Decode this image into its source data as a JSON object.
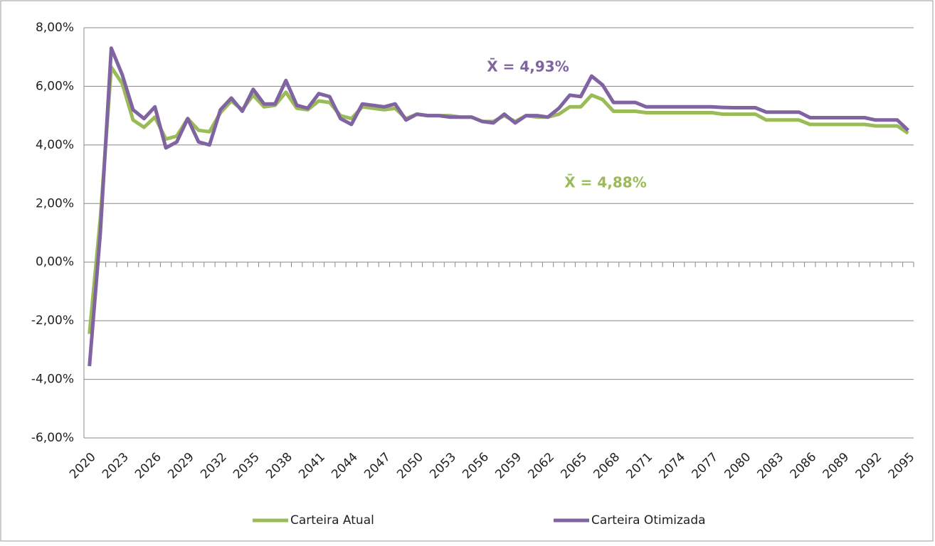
{
  "chart_data": {
    "type": "line",
    "categories": [
      "2020",
      null,
      null,
      "2023",
      null,
      null,
      "2026",
      null,
      null,
      "2029",
      null,
      null,
      "2032",
      null,
      null,
      "2035",
      null,
      null,
      "2038",
      null,
      null,
      "2041",
      null,
      null,
      "2044",
      null,
      null,
      "2047",
      null,
      null,
      "2050",
      null,
      null,
      "2053",
      null,
      null,
      "2056",
      null,
      null,
      "2059",
      null,
      null,
      "2062",
      null,
      null,
      "2065",
      null,
      null,
      "2068",
      null,
      null,
      "2071",
      null,
      null,
      "2074",
      null,
      null,
      "2077",
      null,
      null,
      "2080",
      null,
      null,
      "2083",
      null,
      null,
      "2086",
      null,
      null,
      "2089",
      null,
      null,
      "2092",
      null,
      null,
      "2095"
    ],
    "series": [
      {
        "name": "Carteira Atual",
        "color": "#9bbb59",
        "values": [
          -2.45,
          1.5,
          6.65,
          6.1,
          4.85,
          4.6,
          4.95,
          4.2,
          4.3,
          4.9,
          4.5,
          4.45,
          5.1,
          5.5,
          5.2,
          5.7,
          5.3,
          5.35,
          5.8,
          5.25,
          5.2,
          5.5,
          5.45,
          5.0,
          4.9,
          5.3,
          5.25,
          5.2,
          5.25,
          4.9,
          5.05,
          5.0,
          5.0,
          5.0,
          4.95,
          4.95,
          4.8,
          4.8,
          5.0,
          4.8,
          5.0,
          4.95,
          4.95,
          5.05,
          5.3,
          5.3,
          5.7,
          5.55,
          5.15,
          5.15,
          5.15,
          5.1,
          5.1,
          5.1,
          5.1,
          5.1,
          5.1,
          5.1,
          5.05,
          5.05,
          5.05,
          5.05,
          4.85,
          4.85,
          4.85,
          4.85,
          4.7,
          4.7,
          4.7,
          4.7,
          4.7,
          4.7,
          4.65,
          4.65,
          4.65,
          4.4
        ]
      },
      {
        "name": "Carteira Otimizada",
        "color": "#8064a2",
        "values": [
          -3.55,
          1.0,
          7.3,
          6.4,
          5.2,
          4.9,
          5.3,
          3.9,
          4.1,
          4.9,
          4.1,
          4.0,
          5.2,
          5.6,
          5.15,
          5.9,
          5.4,
          5.4,
          6.2,
          5.35,
          5.25,
          5.75,
          5.65,
          4.9,
          4.7,
          5.4,
          5.35,
          5.3,
          5.4,
          4.85,
          5.05,
          5.0,
          5.0,
          4.95,
          4.95,
          4.95,
          4.8,
          4.75,
          5.05,
          4.75,
          5.0,
          5.0,
          4.95,
          5.25,
          5.7,
          5.65,
          6.35,
          6.05,
          5.45,
          5.45,
          5.45,
          5.3,
          5.3,
          5.3,
          5.3,
          5.3,
          5.3,
          5.3,
          5.28,
          5.27,
          5.27,
          5.27,
          5.12,
          5.12,
          5.12,
          5.12,
          4.93,
          4.93,
          4.93,
          4.93,
          4.93,
          4.93,
          4.85,
          4.85,
          4.85,
          4.5
        ]
      }
    ],
    "annotations": [
      "X̄ = 4,93%",
      "X̄ = 4,88%"
    ],
    "ylim": [
      -6,
      8
    ],
    "yticks": [
      {
        "value": -6,
        "label": "-6,00%"
      },
      {
        "value": -4,
        "label": "-4,00%"
      },
      {
        "value": -2,
        "label": "-2,00%"
      },
      {
        "value": 0,
        "label": "0,00%"
      },
      {
        "value": 2,
        "label": "2,00%"
      },
      {
        "value": 4,
        "label": "4,00%"
      },
      {
        "value": 6,
        "label": "6,00%"
      },
      {
        "value": 8,
        "label": "8,00%"
      }
    ],
    "grid": true,
    "legend": "bottom"
  }
}
